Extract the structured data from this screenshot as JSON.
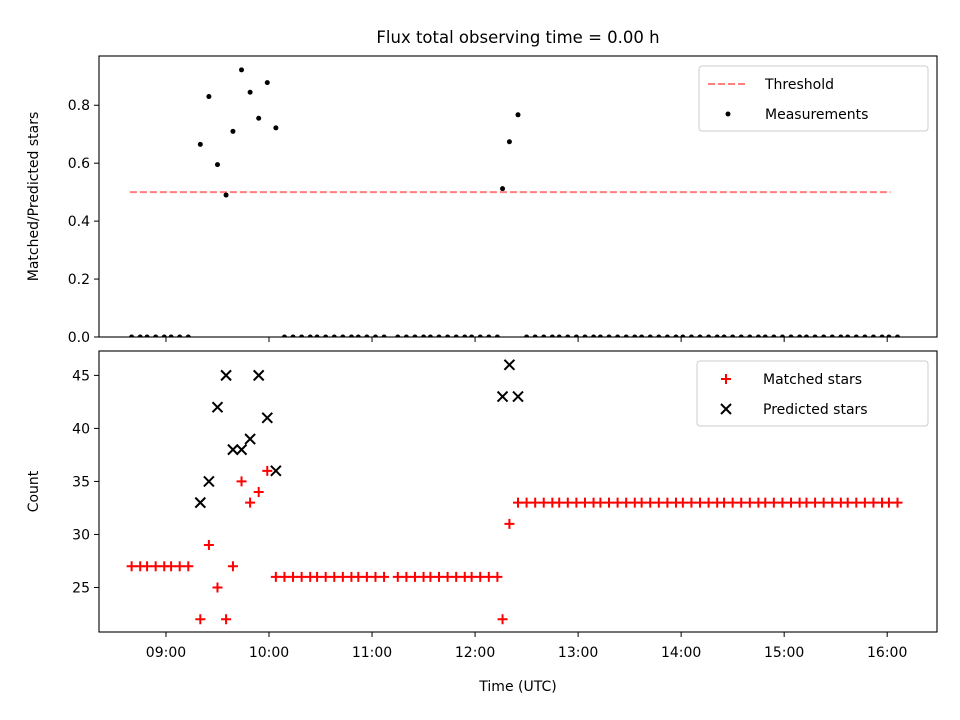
{
  "title": "Flux total observing time = 0.00 h",
  "colors": {
    "threshold": "#ff7f7f",
    "measurements": "#000000",
    "matched": "#ff0000",
    "predicted": "#000000"
  },
  "chart_data": [
    {
      "type": "scatter",
      "id": "ratio",
      "ylabel": "Matched/Predicted stars",
      "xlabel": "",
      "xlim": [
        "08:21",
        "16:29"
      ],
      "ylim": [
        0,
        0.97
      ],
      "yticks": [
        0.0,
        0.2,
        0.4,
        0.6,
        0.8
      ],
      "xticks": [
        "09:00",
        "10:00",
        "11:00",
        "12:00",
        "13:00",
        "14:00",
        "15:00",
        "16:00"
      ],
      "show_xtick_labels": false,
      "grid": false,
      "legend": {
        "position": "top-right",
        "entries": [
          "Threshold",
          "Measurements"
        ]
      },
      "series": [
        {
          "name": "Threshold",
          "kind": "line",
          "style": "dashed",
          "x": [
            "08:39",
            "16:02"
          ],
          "y": [
            0.5,
            0.5
          ]
        },
        {
          "name": "Measurements",
          "kind": "scatter",
          "points": [
            [
              "08:40",
              0
            ],
            [
              "08:45",
              0
            ],
            [
              "08:49",
              0
            ],
            [
              "08:54",
              0
            ],
            [
              "08:59",
              0
            ],
            [
              "09:03",
              0
            ],
            [
              "09:08",
              0
            ],
            [
              "09:13",
              0
            ],
            [
              "09:20",
              0.665
            ],
            [
              "09:25",
              0.83
            ],
            [
              "09:30",
              0.595
            ],
            [
              "09:35",
              0.49
            ],
            [
              "09:39",
              0.71
            ],
            [
              "09:44",
              0.922
            ],
            [
              "09:49",
              0.845
            ],
            [
              "09:54",
              0.755
            ],
            [
              "09:59",
              0.878
            ],
            [
              "10:04",
              0.722
            ],
            [
              "10:09",
              0
            ],
            [
              "10:14",
              0
            ],
            [
              "10:19",
              0
            ],
            [
              "10:24",
              0
            ],
            [
              "10:28",
              0
            ],
            [
              "10:33",
              0
            ],
            [
              "10:38",
              0
            ],
            [
              "10:43",
              0
            ],
            [
              "10:48",
              0
            ],
            [
              "10:52",
              0
            ],
            [
              "10:57",
              0
            ],
            [
              "11:02",
              0
            ],
            [
              "11:07",
              0
            ],
            [
              "11:15",
              0
            ],
            [
              "11:20",
              0
            ],
            [
              "11:25",
              0
            ],
            [
              "11:30",
              0
            ],
            [
              "11:34",
              0
            ],
            [
              "11:39",
              0
            ],
            [
              "11:44",
              0
            ],
            [
              "11:49",
              0
            ],
            [
              "11:54",
              0
            ],
            [
              "11:58",
              0
            ],
            [
              "12:03",
              0
            ],
            [
              "12:08",
              0
            ],
            [
              "12:13",
              0
            ],
            [
              "12:16",
              0.512
            ],
            [
              "12:20",
              0.674
            ],
            [
              "12:25",
              0.767
            ],
            [
              "12:30",
              0
            ],
            [
              "12:35",
              0
            ],
            [
              "12:40",
              0
            ],
            [
              "12:45",
              0
            ],
            [
              "12:49",
              0
            ],
            [
              "12:54",
              0
            ],
            [
              "12:59",
              0
            ],
            [
              "13:04",
              0
            ],
            [
              "13:09",
              0
            ],
            [
              "13:13",
              0
            ],
            [
              "13:18",
              0
            ],
            [
              "13:23",
              0
            ],
            [
              "13:28",
              0
            ],
            [
              "13:33",
              0
            ],
            [
              "13:37",
              0
            ],
            [
              "13:42",
              0
            ],
            [
              "13:47",
              0
            ],
            [
              "13:52",
              0
            ],
            [
              "13:57",
              0
            ],
            [
              "14:01",
              0
            ],
            [
              "14:06",
              0
            ],
            [
              "14:11",
              0
            ],
            [
              "14:16",
              0
            ],
            [
              "14:21",
              0
            ],
            [
              "14:25",
              0
            ],
            [
              "14:30",
              0
            ],
            [
              "14:35",
              0
            ],
            [
              "14:40",
              0
            ],
            [
              "14:45",
              0
            ],
            [
              "14:49",
              0
            ],
            [
              "14:54",
              0
            ],
            [
              "14:59",
              0
            ],
            [
              "15:04",
              0
            ],
            [
              "15:09",
              0
            ],
            [
              "15:13",
              0
            ],
            [
              "15:18",
              0
            ],
            [
              "15:23",
              0
            ],
            [
              "15:28",
              0
            ],
            [
              "15:33",
              0
            ],
            [
              "15:37",
              0
            ],
            [
              "15:42",
              0
            ],
            [
              "15:47",
              0
            ],
            [
              "15:52",
              0
            ],
            [
              "15:57",
              0
            ],
            [
              "16:01",
              0
            ],
            [
              "16:06",
              0
            ]
          ]
        }
      ]
    },
    {
      "type": "scatter",
      "id": "counts",
      "ylabel": "Count",
      "xlabel": "Time (UTC)",
      "xlim": [
        "08:21",
        "16:29"
      ],
      "ylim": [
        20.8,
        47.3
      ],
      "yticks": [
        25,
        30,
        35,
        40,
        45
      ],
      "xticks": [
        "09:00",
        "10:00",
        "11:00",
        "12:00",
        "13:00",
        "14:00",
        "15:00",
        "16:00"
      ],
      "show_xtick_labels": true,
      "grid": false,
      "legend": {
        "position": "top-right",
        "entries": [
          "Matched stars",
          "Predicted stars"
        ]
      },
      "series": [
        {
          "name": "Matched stars",
          "marker": "+",
          "points": [
            [
              "08:40",
              27
            ],
            [
              "08:45",
              27
            ],
            [
              "08:49",
              27
            ],
            [
              "08:54",
              27
            ],
            [
              "08:59",
              27
            ],
            [
              "09:03",
              27
            ],
            [
              "09:08",
              27
            ],
            [
              "09:13",
              27
            ],
            [
              "09:20",
              22
            ],
            [
              "09:25",
              29
            ],
            [
              "09:30",
              25
            ],
            [
              "09:35",
              22
            ],
            [
              "09:39",
              27
            ],
            [
              "09:44",
              35
            ],
            [
              "09:49",
              33
            ],
            [
              "09:54",
              34
            ],
            [
              "09:59",
              36
            ],
            [
              "10:04",
              26
            ],
            [
              "10:09",
              26
            ],
            [
              "10:14",
              26
            ],
            [
              "10:19",
              26
            ],
            [
              "10:24",
              26
            ],
            [
              "10:28",
              26
            ],
            [
              "10:33",
              26
            ],
            [
              "10:38",
              26
            ],
            [
              "10:43",
              26
            ],
            [
              "10:48",
              26
            ],
            [
              "10:52",
              26
            ],
            [
              "10:57",
              26
            ],
            [
              "11:02",
              26
            ],
            [
              "11:07",
              26
            ],
            [
              "11:15",
              26
            ],
            [
              "11:20",
              26
            ],
            [
              "11:25",
              26
            ],
            [
              "11:30",
              26
            ],
            [
              "11:34",
              26
            ],
            [
              "11:39",
              26
            ],
            [
              "11:44",
              26
            ],
            [
              "11:49",
              26
            ],
            [
              "11:54",
              26
            ],
            [
              "11:58",
              26
            ],
            [
              "12:03",
              26
            ],
            [
              "12:08",
              26
            ],
            [
              "12:13",
              26
            ],
            [
              "12:16",
              22
            ],
            [
              "12:20",
              31
            ],
            [
              "12:25",
              33
            ],
            [
              "12:30",
              33
            ],
            [
              "12:35",
              33
            ],
            [
              "12:40",
              33
            ],
            [
              "12:45",
              33
            ],
            [
              "12:49",
              33
            ],
            [
              "12:54",
              33
            ],
            [
              "12:59",
              33
            ],
            [
              "13:04",
              33
            ],
            [
              "13:09",
              33
            ],
            [
              "13:13",
              33
            ],
            [
              "13:18",
              33
            ],
            [
              "13:23",
              33
            ],
            [
              "13:28",
              33
            ],
            [
              "13:33",
              33
            ],
            [
              "13:37",
              33
            ],
            [
              "13:42",
              33
            ],
            [
              "13:47",
              33
            ],
            [
              "13:52",
              33
            ],
            [
              "13:57",
              33
            ],
            [
              "14:01",
              33
            ],
            [
              "14:06",
              33
            ],
            [
              "14:11",
              33
            ],
            [
              "14:16",
              33
            ],
            [
              "14:21",
              33
            ],
            [
              "14:25",
              33
            ],
            [
              "14:30",
              33
            ],
            [
              "14:35",
              33
            ],
            [
              "14:40",
              33
            ],
            [
              "14:45",
              33
            ],
            [
              "14:49",
              33
            ],
            [
              "14:54",
              33
            ],
            [
              "14:59",
              33
            ],
            [
              "15:04",
              33
            ],
            [
              "15:09",
              33
            ],
            [
              "15:13",
              33
            ],
            [
              "15:18",
              33
            ],
            [
              "15:23",
              33
            ],
            [
              "15:28",
              33
            ],
            [
              "15:33",
              33
            ],
            [
              "15:37",
              33
            ],
            [
              "15:42",
              33
            ],
            [
              "15:47",
              33
            ],
            [
              "15:52",
              33
            ],
            [
              "15:57",
              33
            ],
            [
              "16:01",
              33
            ],
            [
              "16:06",
              33
            ]
          ]
        },
        {
          "name": "Predicted stars",
          "marker": "x",
          "points": [
            [
              "09:20",
              33
            ],
            [
              "09:25",
              35
            ],
            [
              "09:30",
              42
            ],
            [
              "09:35",
              45
            ],
            [
              "09:39",
              38
            ],
            [
              "09:44",
              38
            ],
            [
              "09:49",
              39
            ],
            [
              "09:54",
              45
            ],
            [
              "09:59",
              41
            ],
            [
              "10:04",
              36
            ],
            [
              "12:16",
              43
            ],
            [
              "12:20",
              46
            ],
            [
              "12:25",
              43
            ]
          ]
        }
      ]
    }
  ]
}
